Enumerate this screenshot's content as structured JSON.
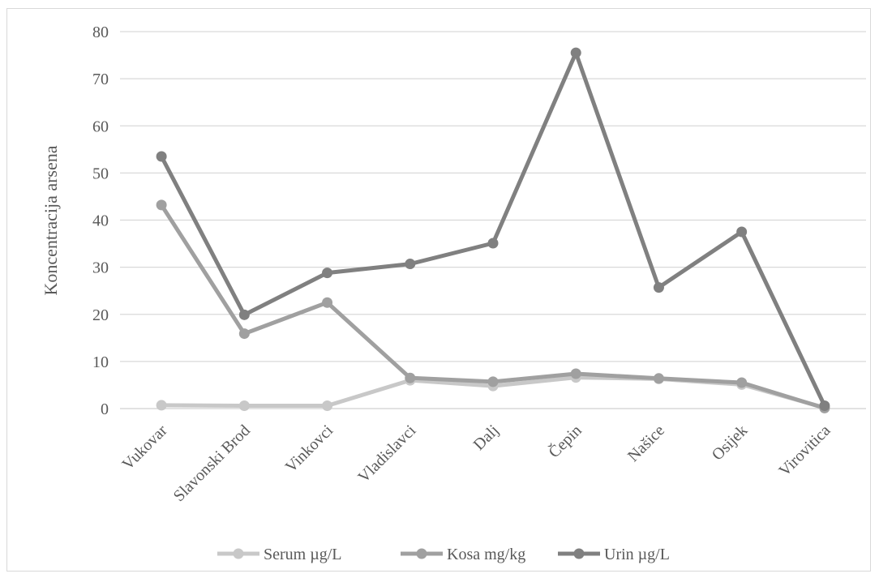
{
  "chart_data": {
    "type": "line",
    "title": "",
    "xlabel": "",
    "ylabel": "Koncentracija arsena",
    "ylim": [
      0,
      80
    ],
    "yticks": [
      0,
      10,
      20,
      30,
      40,
      50,
      60,
      70,
      80
    ],
    "grid": true,
    "legend": "bottom",
    "categories": [
      "Vukovar",
      "Slavonski Brod",
      "Vinkovci",
      "Vladislavci",
      "Dalj",
      "Čepin",
      "Našice",
      "Osijek",
      "Virovitica"
    ],
    "series": [
      {
        "name": "Serum µg/L",
        "color": "#c8c8c8",
        "values": [
          0.7,
          0.6,
          0.6,
          6.0,
          4.8,
          6.6,
          6.3,
          5.1,
          0.2
        ]
      },
      {
        "name": "Kosa mg/kg",
        "color": "#a0a0a0",
        "values": [
          43.2,
          15.9,
          22.5,
          6.5,
          5.7,
          7.4,
          6.4,
          5.5,
          0.1
        ]
      },
      {
        "name": "Urin µg/L",
        "color": "#808080",
        "values": [
          53.5,
          19.9,
          28.8,
          30.7,
          35.1,
          75.5,
          25.7,
          37.5,
          0.6
        ]
      }
    ]
  }
}
